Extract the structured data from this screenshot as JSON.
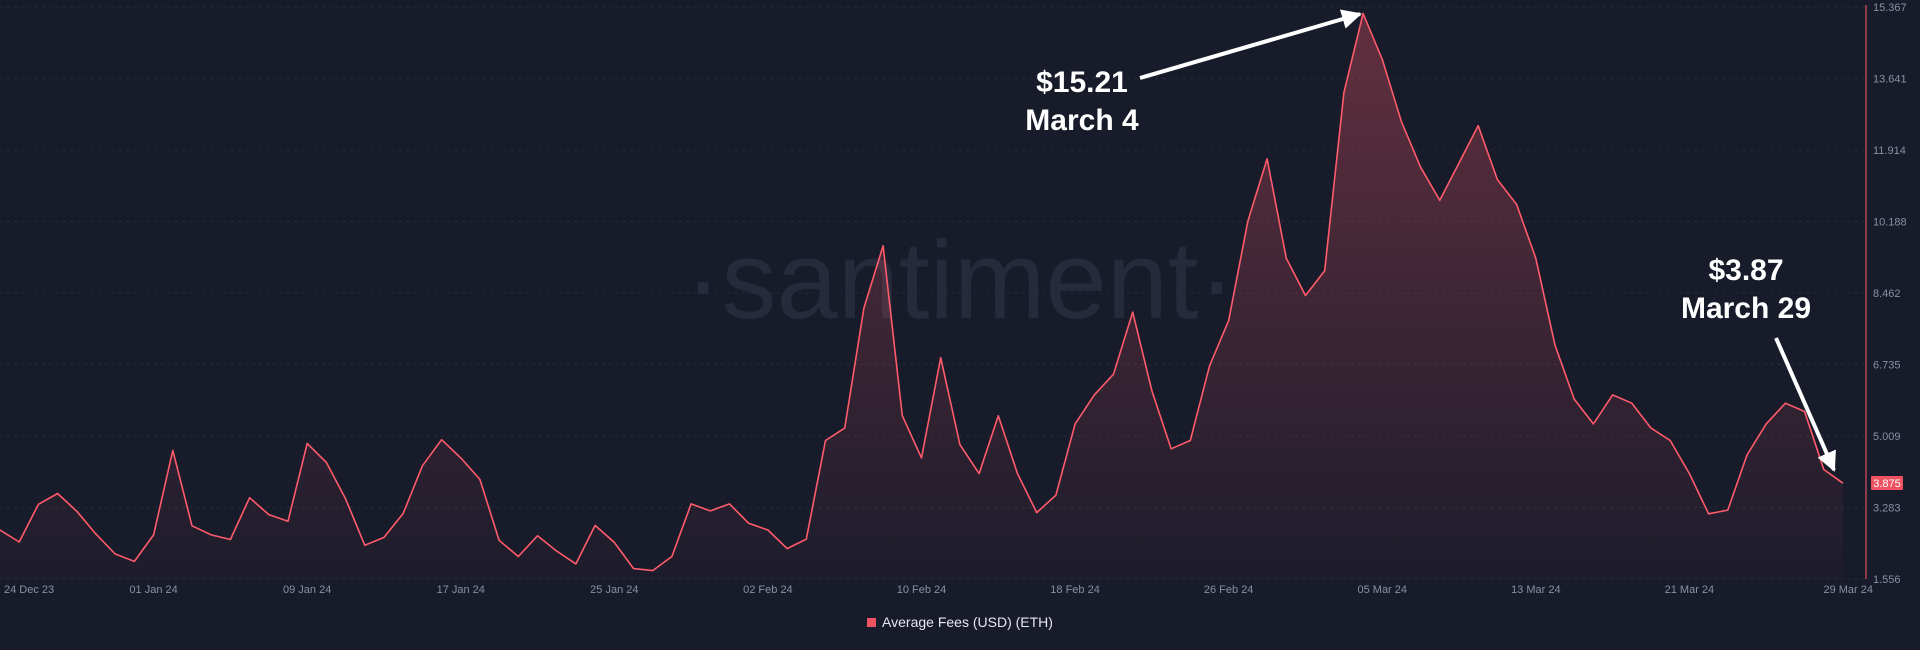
{
  "watermark": "·santiment·",
  "colors": {
    "background": "#181b2a",
    "series": "#ff5b6b",
    "annotation": "#ffffff",
    "current_badge": "#ef5261"
  },
  "chart_data": {
    "type": "area",
    "series": [
      {
        "name": "Average Fees (USD) (ETH)",
        "values": [
          2.74,
          2.45,
          3.36,
          3.62,
          3.19,
          2.64,
          2.16,
          1.98,
          2.62,
          4.66,
          2.84,
          2.62,
          2.51,
          3.52,
          3.11,
          2.95,
          4.83,
          4.37,
          3.49,
          2.37,
          2.56,
          3.14,
          4.29,
          4.92,
          4.48,
          3.96,
          2.49,
          2.1,
          2.6,
          2.23,
          1.92,
          2.85,
          2.44,
          1.81,
          1.76,
          2.1,
          3.37,
          3.2,
          3.37,
          2.9,
          2.74,
          2.29,
          2.52,
          4.9,
          5.2,
          8.1,
          9.6,
          5.5,
          4.48,
          6.9,
          4.8,
          4.1,
          5.5,
          4.1,
          3.16,
          3.58,
          5.3,
          6.0,
          6.5,
          8.0,
          6.1,
          4.7,
          4.9,
          6.7,
          7.8,
          10.2,
          11.7,
          9.3,
          8.4,
          9.0,
          13.3,
          15.21,
          14.1,
          12.6,
          11.5,
          10.7,
          11.6,
          12.5,
          11.2,
          10.6,
          9.3,
          7.2,
          5.9,
          5.3,
          6.0,
          5.8,
          5.2,
          4.9,
          4.1,
          3.13,
          3.22,
          4.55,
          5.3,
          5.8,
          5.6,
          4.2,
          3.87
        ]
      }
    ],
    "x_tick_labels": [
      "24 Dec 23",
      "01 Jan 24",
      "09 Jan 24",
      "17 Jan 24",
      "25 Jan 24",
      "02 Feb 24",
      "10 Feb 24",
      "18 Feb 24",
      "26 Feb 24",
      "05 Mar 24",
      "13 Mar 24",
      "21 Mar 24",
      "29 Mar 24"
    ],
    "x_tick_index": [
      0,
      8,
      16,
      24,
      32,
      40,
      48,
      56,
      64,
      72,
      80,
      88,
      96
    ],
    "y_ticks": [
      "15.367",
      "13.641",
      "11.914",
      "10.188",
      "8.462",
      "6.735",
      "5.009",
      "3.283",
      "1.556"
    ],
    "ylim": [
      1.556,
      15.367
    ],
    "current_value_label": "3.875",
    "annotations": [
      {
        "value": "$15.21",
        "date": "March 4",
        "index": 71
      },
      {
        "value": "$3.87",
        "date": "March 29",
        "index": 96
      }
    ],
    "legend_position": "bottom-center",
    "grid": true
  }
}
